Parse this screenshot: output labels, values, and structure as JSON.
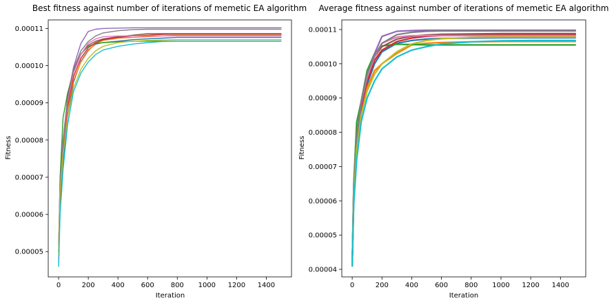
{
  "chart_data": [
    {
      "type": "line",
      "title": "Best fitness against number of iterations of memetic EA algorithm",
      "xlabel": "Iteration",
      "ylabel": "Fitness",
      "xlim": [
        -70,
        1570
      ],
      "ylim": [
        4.32e-05,
        0.0001123
      ],
      "xticks": [
        0,
        200,
        400,
        600,
        800,
        1000,
        1200,
        1400
      ],
      "xtick_labels": [
        "0",
        "200",
        "400",
        "600",
        "800",
        "1000",
        "1200",
        "1400"
      ],
      "yticks": [
        5e-05,
        6e-05,
        7e-05,
        8e-05,
        9e-05,
        0.0001,
        0.00011
      ],
      "ytick_labels": [
        "0.00005",
        "0.00006",
        "0.00007",
        "0.00008",
        "0.00009",
        "0.00010",
        "0.00011"
      ],
      "grid": false,
      "series": [
        {
          "color": "#1f77b4",
          "x": [
            0,
            10,
            30,
            60,
            100,
            150,
            200,
            250,
            300,
            400,
            500,
            600,
            700,
            800,
            1000,
            1500
          ],
          "y": [
            4.7e-05,
            6.2e-05,
            7.4e-05,
            8.6e-05,
            9.55e-05,
            0.0001012,
            0.0001042,
            0.0001058,
            0.0001062,
            0.0001066,
            0.000107,
            0.0001072,
            0.0001074,
            0.0001076,
            0.0001076,
            0.0001076
          ]
        },
        {
          "color": "#ff7f0e",
          "x": [
            0,
            10,
            30,
            60,
            100,
            150,
            200,
            250,
            300,
            400,
            500,
            600,
            700,
            800,
            1000,
            1500
          ],
          "y": [
            5.2e-05,
            6.5e-05,
            7.6e-05,
            8.8e-05,
            9.6e-05,
            0.000101,
            0.000104,
            0.000106,
            0.0001068,
            0.0001074,
            0.0001076,
            0.0001078,
            0.000108,
            0.0001082,
            0.0001082,
            0.0001082
          ]
        },
        {
          "color": "#2ca02c",
          "x": [
            0,
            10,
            30,
            60,
            100,
            150,
            200,
            250,
            300,
            400,
            500,
            600,
            700,
            800,
            1000,
            1500
          ],
          "y": [
            5e-05,
            7e-05,
            8.6e-05,
            9.25e-05,
            9.85e-05,
            0.0001032,
            0.0001052,
            0.000106,
            0.0001062,
            0.0001064,
            0.0001066,
            0.0001066,
            0.0001066,
            0.0001066,
            0.0001066,
            0.0001066
          ]
        },
        {
          "color": "#d62728",
          "x": [
            0,
            10,
            30,
            60,
            100,
            150,
            200,
            250,
            300,
            400,
            500,
            600,
            700,
            800,
            1000,
            1500
          ],
          "y": [
            5e-05,
            6.6e-05,
            7.8e-05,
            8.9e-05,
            9.7e-05,
            0.000102,
            0.0001048,
            0.0001062,
            0.000107,
            0.0001076,
            0.000108,
            0.0001082,
            0.0001084,
            0.0001085,
            0.0001085,
            0.0001085
          ]
        },
        {
          "color": "#9467bd",
          "x": [
            0,
            10,
            30,
            60,
            100,
            150,
            200,
            250,
            300,
            400,
            500,
            600,
            700,
            800,
            1000,
            1500
          ],
          "y": [
            5.2e-05,
            6.9e-05,
            8e-05,
            9.1e-05,
            9.95e-05,
            0.000106,
            0.0001092,
            0.0001098,
            0.00011,
            0.0001101,
            0.0001102,
            0.0001102,
            0.0001102,
            0.0001102,
            0.0001102,
            0.0001102
          ]
        },
        {
          "color": "#8c564b",
          "x": [
            0,
            10,
            30,
            60,
            100,
            150,
            200,
            250,
            300,
            400,
            500,
            600,
            700,
            800,
            1000,
            1500
          ],
          "y": [
            4.8e-05,
            6.5e-05,
            7.7e-05,
            9.2e-05,
            9.9e-05,
            0.000103,
            0.0001055,
            0.0001066,
            0.0001072,
            0.0001078,
            0.0001082,
            0.0001086,
            0.0001086,
            0.0001086,
            0.0001086,
            0.0001086
          ]
        },
        {
          "color": "#e377c2",
          "x": [
            0,
            10,
            30,
            60,
            100,
            150,
            200,
            250,
            300,
            400,
            500,
            600,
            700,
            800,
            1000,
            1500
          ],
          "y": [
            4.8e-05,
            6.8e-05,
            7.9e-05,
            9e-05,
            9.8e-05,
            0.000103,
            0.000106,
            0.0001072,
            0.0001078,
            0.000108,
            0.000108,
            0.000108,
            0.000108,
            0.000108,
            0.000108,
            0.000108
          ]
        },
        {
          "color": "#7f7f7f",
          "x": [
            0,
            10,
            30,
            60,
            100,
            150,
            200,
            250,
            300,
            400,
            500,
            600,
            700,
            800,
            1000,
            1500
          ],
          "y": [
            5e-05,
            6.9e-05,
            8e-05,
            9.1e-05,
            9.9e-05,
            0.000104,
            0.0001065,
            0.000108,
            0.0001088,
            0.0001094,
            0.0001097,
            0.0001098,
            0.0001098,
            0.0001098,
            0.0001098,
            0.0001098
          ]
        },
        {
          "color": "#bcbd22",
          "x": [
            0,
            10,
            30,
            60,
            100,
            150,
            200,
            250,
            300,
            400,
            500,
            600,
            700,
            800,
            1000,
            1500
          ],
          "y": [
            4.9e-05,
            6.6e-05,
            7.6e-05,
            8.6e-05,
            9.4e-05,
            9.9e-05,
            0.000102,
            0.000104,
            0.0001052,
            0.0001062,
            0.0001066,
            0.0001068,
            0.0001069,
            0.000107,
            0.000107,
            0.000107
          ]
        },
        {
          "color": "#17becf",
          "x": [
            0,
            10,
            30,
            60,
            100,
            150,
            200,
            250,
            300,
            400,
            500,
            600,
            700,
            800,
            1000,
            1500
          ],
          "y": [
            4.6e-05,
            6e-05,
            7.2e-05,
            8.4e-05,
            9.3e-05,
            9.8e-05,
            0.000101,
            0.000103,
            0.0001042,
            0.0001052,
            0.0001058,
            0.0001062,
            0.0001065,
            0.0001066,
            0.0001066,
            0.0001066
          ]
        }
      ]
    },
    {
      "type": "line",
      "title": "Average fitness against number of iterations of memetic EA algorithm",
      "xlabel": "Iteration",
      "ylabel": "Fitness",
      "xlim": [
        -70,
        1570
      ],
      "ylim": [
        3.78e-05,
        0.0001128
      ],
      "xticks": [
        0,
        200,
        400,
        600,
        800,
        1000,
        1200,
        1400
      ],
      "xtick_labels": [
        "0",
        "200",
        "400",
        "600",
        "800",
        "1000",
        "1200",
        "1400"
      ],
      "yticks": [
        4e-05,
        5e-05,
        6e-05,
        7e-05,
        8e-05,
        9e-05,
        0.0001,
        0.00011
      ],
      "ytick_labels": [
        "0.00004",
        "0.00005",
        "0.00006",
        "0.00007",
        "0.00008",
        "0.00009",
        "0.00010",
        "0.00011"
      ],
      "grid": false,
      "series": [
        {
          "color": "#1f77b4",
          "x": [
            0,
            10,
            30,
            60,
            100,
            150,
            200,
            300,
            400,
            500,
            600,
            800,
            1000,
            1200,
            1500
          ],
          "y": [
            4.1e-05,
            6e-05,
            7.4e-05,
            8.6e-05,
            9.4e-05,
            0.0001,
            0.0001035,
            0.000106,
            0.0001068,
            0.0001072,
            0.0001074,
            0.0001075,
            0.0001076,
            0.0001076,
            0.0001076
          ]
        },
        {
          "color": "#ff7f0e",
          "x": [
            0,
            10,
            30,
            60,
            100,
            150,
            200,
            300,
            400,
            500,
            600,
            800,
            1000,
            1200,
            1500
          ],
          "y": [
            4.1e-05,
            6e-05,
            7.4e-05,
            8.5e-05,
            9.3e-05,
            9.8e-05,
            0.0001,
            0.000103,
            0.0001055,
            0.000106,
            0.0001062,
            0.0001064,
            0.0001065,
            0.0001065,
            0.0001065
          ]
        },
        {
          "color": "#2ca02c",
          "x": [
            0,
            10,
            30,
            60,
            100,
            150,
            200,
            300,
            400,
            500,
            600,
            800,
            1000,
            1200,
            1500
          ],
          "y": [
            4.1e-05,
            6.5e-05,
            8.3e-05,
            8.9e-05,
            9.8e-05,
            0.000103,
            0.0001052,
            0.0001057,
            0.0001056,
            0.0001055,
            0.0001055,
            0.0001055,
            0.0001055,
            0.0001055,
            0.0001055
          ]
        },
        {
          "color": "#d62728",
          "x": [
            0,
            10,
            30,
            60,
            100,
            150,
            200,
            300,
            400,
            500,
            600,
            800,
            1000,
            1200,
            1500
          ],
          "y": [
            4.1e-05,
            6.2e-05,
            7.6e-05,
            8.7e-05,
            9.5e-05,
            0.000101,
            0.000104,
            0.0001065,
            0.0001075,
            0.000108,
            0.0001082,
            0.0001084,
            0.0001085,
            0.0001085,
            0.0001085
          ]
        },
        {
          "color": "#9467bd",
          "x": [
            0,
            10,
            30,
            60,
            100,
            150,
            200,
            300,
            400,
            500,
            600,
            800,
            1000,
            1200,
            1500
          ],
          "y": [
            4.1e-05,
            6.3e-05,
            7.8e-05,
            8.8e-05,
            9.6e-05,
            0.000103,
            0.000108,
            0.0001095,
            0.0001097,
            0.0001098,
            0.0001098,
            0.0001098,
            0.0001098,
            0.0001098,
            0.0001098
          ]
        },
        {
          "color": "#8c564b",
          "x": [
            0,
            10,
            30,
            60,
            100,
            150,
            200,
            300,
            400,
            500,
            600,
            800,
            1000,
            1200,
            1500
          ],
          "y": [
            4.1e-05,
            6.4e-05,
            7.9e-05,
            8.9e-05,
            9.6e-05,
            0.000102,
            0.000105,
            0.0001072,
            0.000108,
            0.0001084,
            0.0001086,
            0.0001087,
            0.0001088,
            0.0001088,
            0.0001088
          ]
        },
        {
          "color": "#e377c2",
          "x": [
            0,
            10,
            30,
            60,
            100,
            150,
            200,
            300,
            400,
            500,
            600,
            800,
            1000,
            1200,
            1500
          ],
          "y": [
            4.1e-05,
            6.4e-05,
            7.9e-05,
            8.9e-05,
            9.6e-05,
            0.000102,
            0.000106,
            0.0001078,
            0.0001082,
            0.0001082,
            0.0001082,
            0.0001082,
            0.0001082,
            0.0001082,
            0.0001082
          ]
        },
        {
          "color": "#7f7f7f",
          "x": [
            0,
            10,
            30,
            60,
            100,
            150,
            200,
            300,
            400,
            500,
            600,
            800,
            1000,
            1200,
            1500
          ],
          "y": [
            4.1e-05,
            6.4e-05,
            7.9e-05,
            8.9e-05,
            9.7e-05,
            0.0001025,
            0.000106,
            0.0001085,
            0.0001092,
            0.0001095,
            0.0001096,
            0.0001096,
            0.0001096,
            0.0001096,
            0.0001096
          ]
        },
        {
          "color": "#bcbd22",
          "x": [
            0,
            10,
            30,
            60,
            100,
            150,
            200,
            300,
            400,
            500,
            600,
            800,
            1000,
            1200,
            1500
          ],
          "y": [
            4.1e-05,
            6.1e-05,
            7.5e-05,
            8.5e-05,
            9.2e-05,
            9.7e-05,
            0.0001,
            0.0001035,
            0.0001058,
            0.0001068,
            0.0001073,
            0.0001077,
            0.0001078,
            0.0001078,
            0.0001078
          ]
        },
        {
          "color": "#17becf",
          "x": [
            0,
            10,
            30,
            60,
            100,
            150,
            200,
            300,
            400,
            500,
            600,
            800,
            1000,
            1200,
            1500
          ],
          "y": [
            4.1e-05,
            5.9e-05,
            7.2e-05,
            8.3e-05,
            9e-05,
            9.5e-05,
            9.85e-05,
            0.000102,
            0.000104,
            0.000105,
            0.0001058,
            0.0001064,
            0.0001067,
            0.0001068,
            0.0001068
          ]
        }
      ]
    }
  ]
}
